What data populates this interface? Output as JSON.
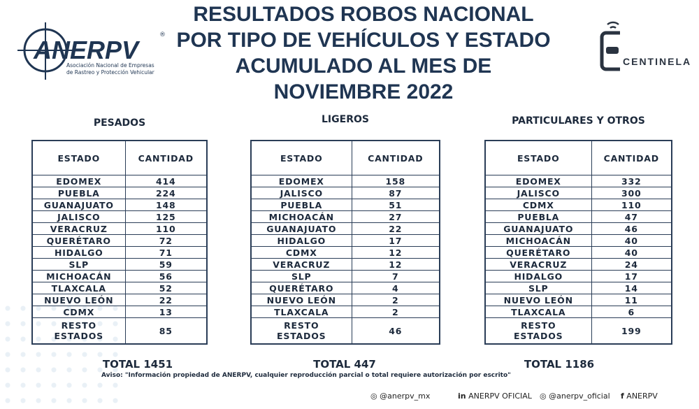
{
  "header": {
    "title_lines": [
      "RESULTADOS ROBOS NACIONAL",
      "POR TIPO DE VEHÍCULOS Y ESTADO",
      "ACUMULADO AL MES DE",
      "NOVIEMBRE 2022"
    ],
    "logo_left": {
      "name": "ANERPV",
      "subtitle_lines": [
        "Asociación Nacional de Empresas",
        "de Rastreo y Protección Vehicular"
      ]
    },
    "logo_right": "CENTINELA"
  },
  "tables": [
    {
      "title": "PESADOS",
      "columns": [
        "ESTADO",
        "CANTIDAD"
      ],
      "rows": [
        [
          "EDOMEX",
          414
        ],
        [
          "PUEBLA",
          224
        ],
        [
          "GUANAJUATO",
          148
        ],
        [
          "JALISCO",
          125
        ],
        [
          "VERACRUZ",
          110
        ],
        [
          "QUERÉTARO",
          72
        ],
        [
          "HIDALGO",
          71
        ],
        [
          "SLP",
          59
        ],
        [
          "MICHOACÁN",
          56
        ],
        [
          "TLAXCALA",
          52
        ],
        [
          "NUEVO LEÓN",
          22
        ],
        [
          "CDMX",
          13
        ],
        [
          "RESTO\nESTADOS",
          85
        ]
      ],
      "total": "TOTAL 1451"
    },
    {
      "title": "LIGEROS",
      "columns": [
        "ESTADO",
        "CANTIDAD"
      ],
      "rows": [
        [
          "EDOMEX",
          158
        ],
        [
          "JALISCO",
          87
        ],
        [
          "PUEBLA",
          51
        ],
        [
          "MICHOACÁN",
          27
        ],
        [
          "GUANAJUATO",
          22
        ],
        [
          "HIDALGO",
          17
        ],
        [
          "CDMX",
          12
        ],
        [
          "VERACRUZ",
          12
        ],
        [
          "SLP",
          7
        ],
        [
          "QUERÉTARO",
          4
        ],
        [
          "NUEVO LEÓN",
          2
        ],
        [
          "TLAXCALA",
          2
        ],
        [
          "RESTO\nESTADOS",
          46
        ]
      ],
      "total": "TOTAL 447"
    },
    {
      "title": "PARTICULARES Y OTROS",
      "columns": [
        "ESTADO",
        "CANTIDAD"
      ],
      "rows": [
        [
          "EDOMEX",
          332
        ],
        [
          "JALISCO",
          300
        ],
        [
          "CDMX",
          110
        ],
        [
          "PUEBLA",
          47
        ],
        [
          "GUANAJUATO",
          46
        ],
        [
          "MICHOACÁN",
          40
        ],
        [
          "QUERÉTARO",
          40
        ],
        [
          "VERACRUZ",
          24
        ],
        [
          "HIDALGO",
          17
        ],
        [
          "SLP",
          14
        ],
        [
          "NUEVO LEÓN",
          11
        ],
        [
          "TLAXCALA",
          6
        ],
        [
          "RESTO\nESTADOS",
          199
        ]
      ],
      "total": "TOTAL 1186"
    }
  ],
  "notice": "Aviso: \"Información propiedad de ANERPV, cualquier reproducción parcial o total requiere autorización por escrito\"",
  "footer": [
    "@anerpv_mx",
    "ANERPV OFICIAL",
    "@anerpv_oficial",
    "ANERPV"
  ]
}
